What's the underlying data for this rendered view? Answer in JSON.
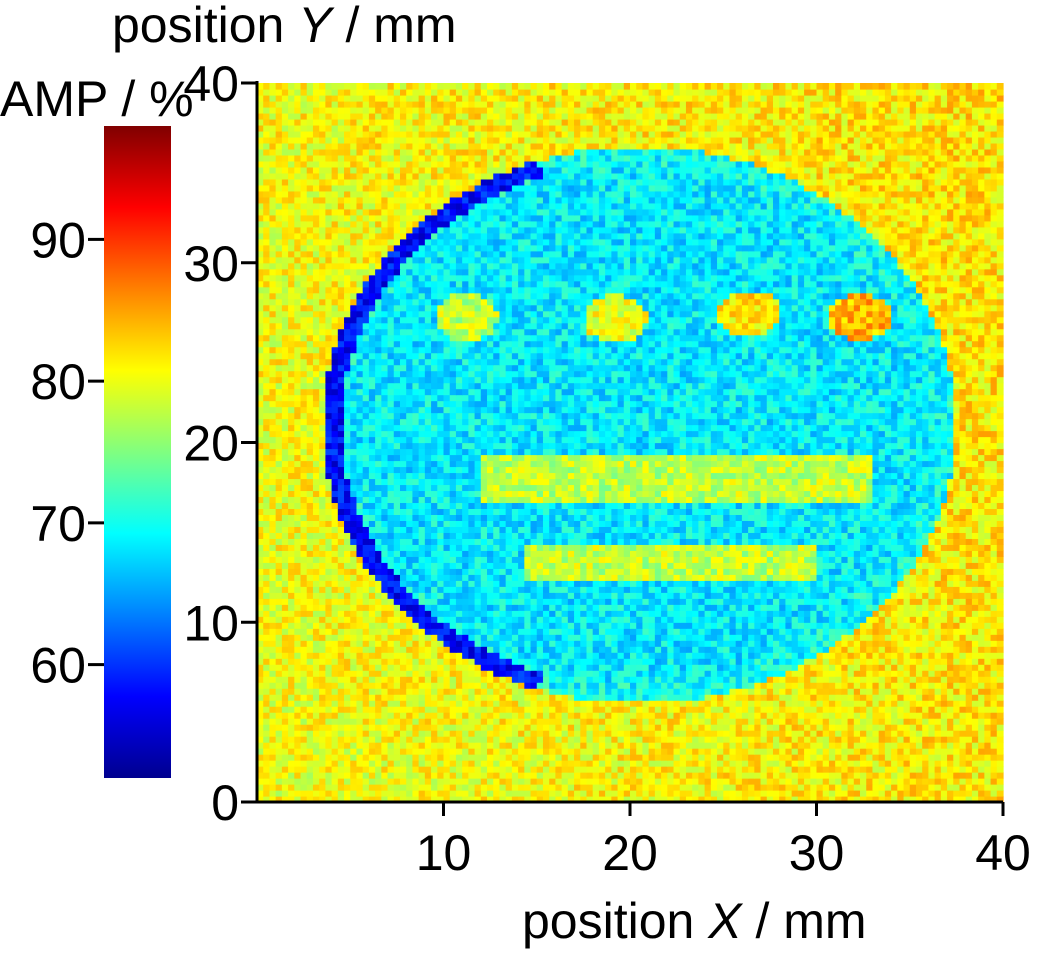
{
  "chart_data": {
    "type": "heatmap",
    "title": "",
    "xlabel": {
      "prefix": "position ",
      "var": "X",
      "suffix": " / mm"
    },
    "ylabel": {
      "prefix": "position ",
      "var": "Y",
      "suffix": " / mm"
    },
    "xlim": [
      0,
      40
    ],
    "ylim": [
      0,
      40
    ],
    "x_ticks": [
      10,
      20,
      30,
      40
    ],
    "y_ticks": [
      0,
      10,
      20,
      30,
      40
    ],
    "grid": false,
    "colorbar": {
      "label": "AMP / %",
      "range": [
        52,
        98
      ],
      "ticks": [
        60,
        70,
        80,
        90
      ],
      "colormap": "jet",
      "colormap_stops": [
        "#00008f",
        "#0000ff",
        "#0080ff",
        "#00ffff",
        "#80ff80",
        "#ffff00",
        "#ff8000",
        "#ff0000",
        "#800000"
      ]
    },
    "values_description": {
      "background_amp": 80,
      "disc": {
        "center": [
          20.5,
          21
        ],
        "radius": [
          17,
          15.5
        ],
        "amp": 68
      },
      "disc_edge_arc": {
        "amp": 58
      },
      "dots": [
        {
          "x": 11.2,
          "y": 27,
          "amp": 78
        },
        {
          "x": 19.2,
          "y": 26.9,
          "amp": 80
        },
        {
          "x": 26.4,
          "y": 27.2,
          "amp": 82
        },
        {
          "x": 32.3,
          "y": 27,
          "amp": 84
        }
      ],
      "bars": [
        {
          "x": [
            12,
            33
          ],
          "y": [
            16.8,
            19.2
          ],
          "amp": 78
        },
        {
          "x": [
            14.5,
            30
          ],
          "y": [
            12.4,
            14.3
          ],
          "amp": 78
        }
      ]
    }
  }
}
